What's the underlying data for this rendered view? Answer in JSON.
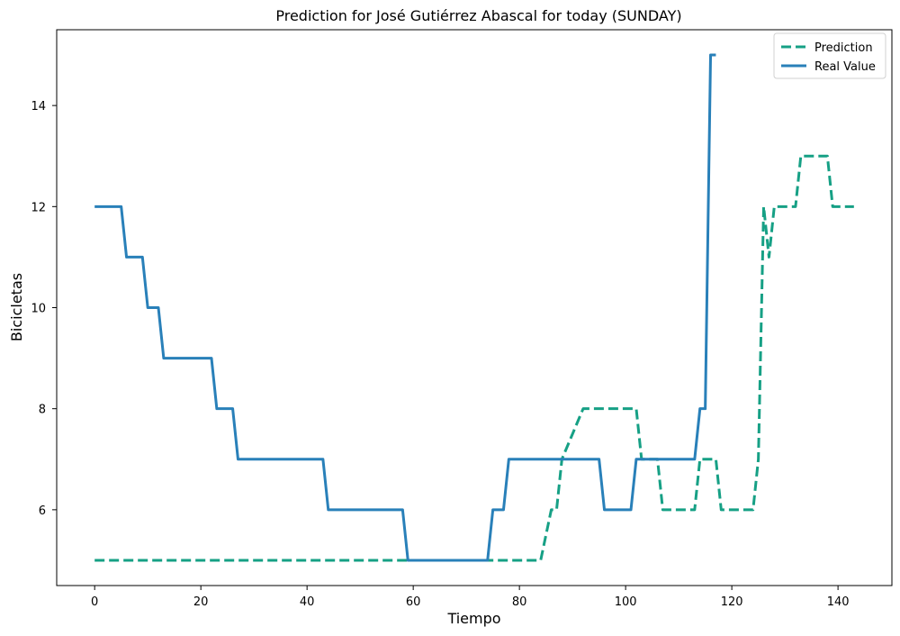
{
  "chart_data": {
    "type": "line",
    "title": "Prediction for José Gutiérrez Abascal  for today (SUNDAY)",
    "xlabel": "Tiempo",
    "ylabel": "Bicicletas",
    "xlim": [
      -7.15,
      150.15
    ],
    "ylim": [
      4.5,
      15.5
    ],
    "xticks": [
      0,
      20,
      40,
      60,
      80,
      100,
      120,
      140
    ],
    "yticks": [
      6,
      8,
      10,
      12,
      14
    ],
    "grid": false,
    "legend": "top-right",
    "series": [
      {
        "name": "Prediction",
        "color": "#16a085",
        "style": "dashed",
        "x": [
          0,
          84,
          86,
          87,
          88,
          92,
          102,
          103,
          106,
          107,
          113,
          114,
          116,
          117,
          118,
          124,
          125,
          126,
          127,
          128,
          132,
          133,
          138,
          139,
          143
        ],
        "y": [
          5,
          5,
          6,
          6,
          7,
          8,
          8,
          7,
          7,
          6,
          6,
          7,
          7,
          7,
          6,
          6,
          7,
          12,
          11,
          12,
          12,
          13,
          13,
          12,
          12
        ]
      },
      {
        "name": "Real Value",
        "color": "#2980b9",
        "style": "solid",
        "x": [
          0,
          5,
          6,
          9,
          10,
          12,
          13,
          22,
          23,
          26,
          27,
          43,
          44,
          58,
          59,
          74,
          75,
          77,
          78,
          95,
          96,
          101,
          102,
          113,
          114,
          115,
          116,
          117
        ],
        "y": [
          12,
          12,
          11,
          11,
          10,
          10,
          9,
          9,
          8,
          8,
          7,
          7,
          6,
          6,
          5,
          5,
          6,
          6,
          7,
          7,
          6,
          6,
          7,
          7,
          8,
          8,
          15,
          15
        ]
      }
    ]
  }
}
